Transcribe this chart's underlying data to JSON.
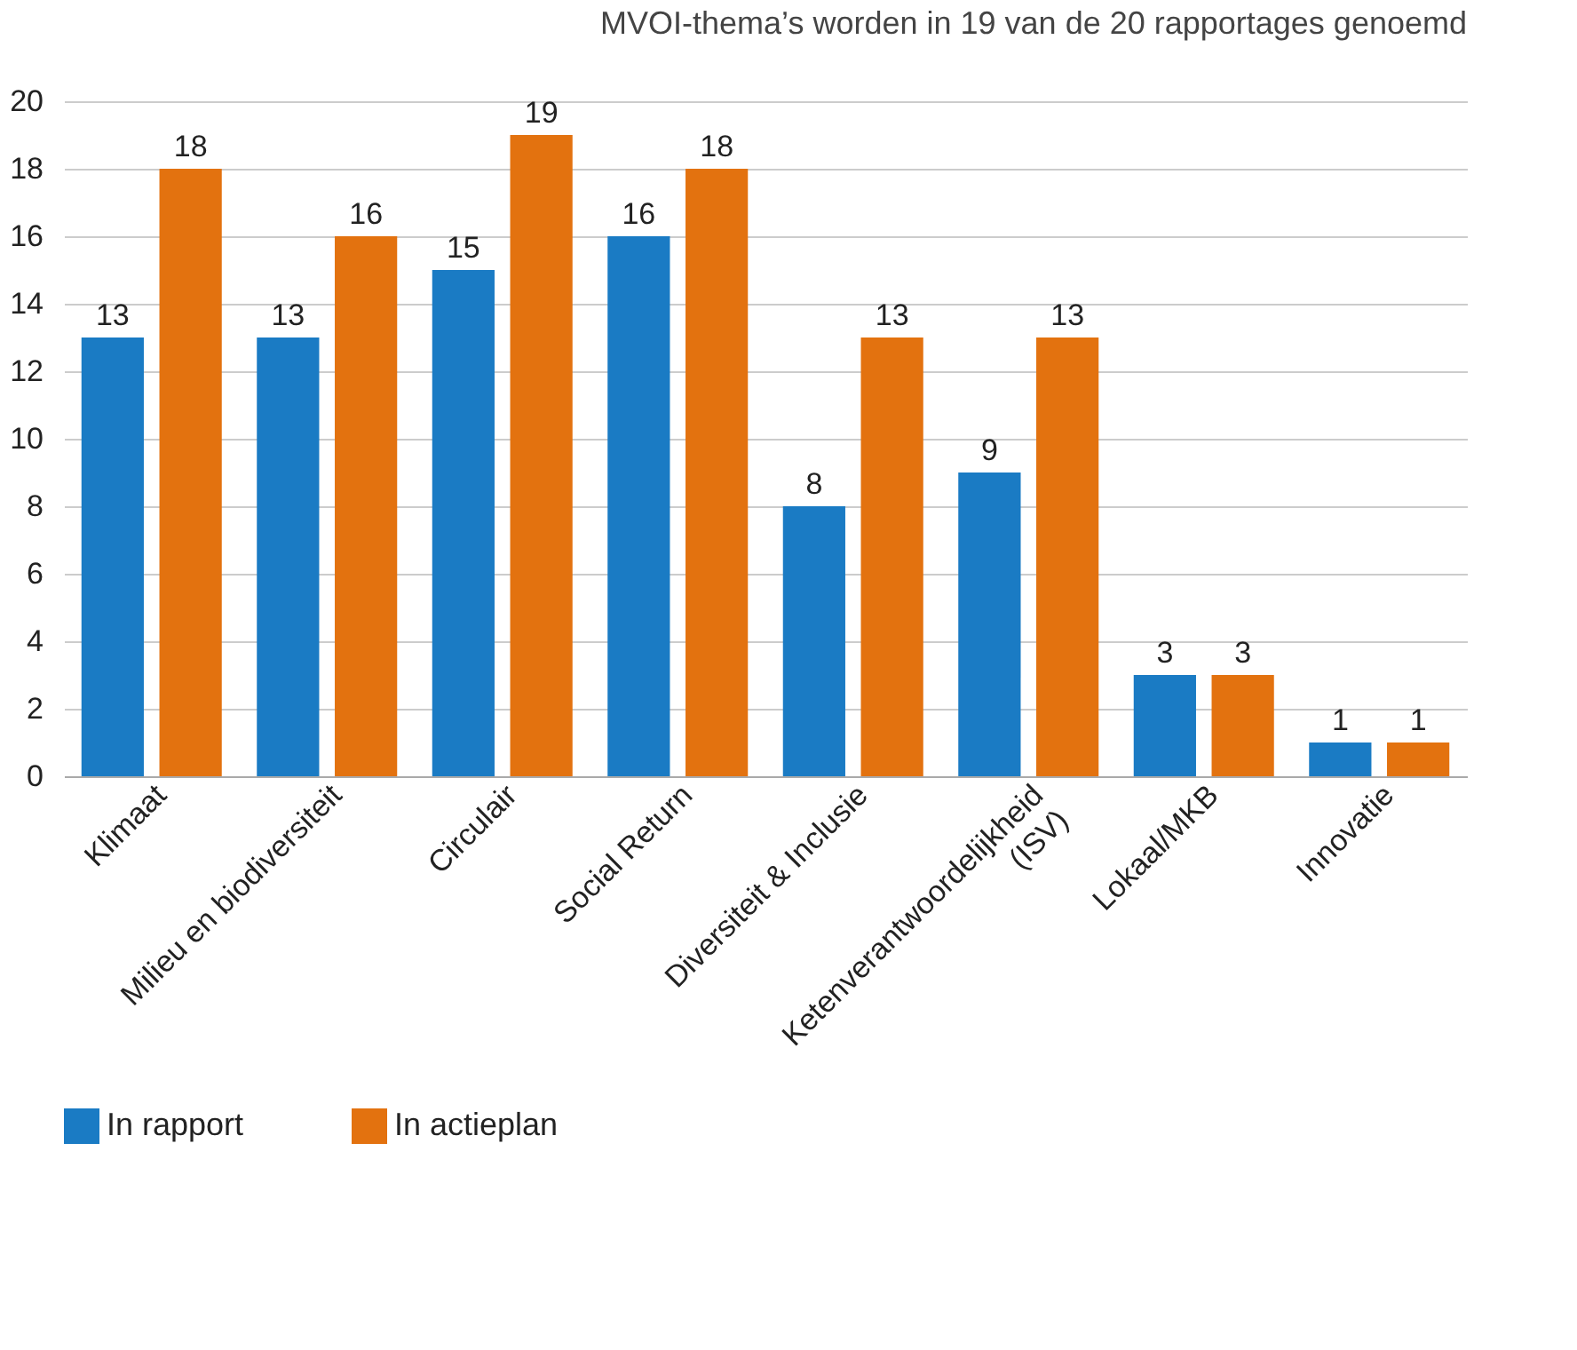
{
  "chart_data": {
    "type": "bar",
    "title": "MVOI-thema’s worden in 19 van de 20 rapportages genoemd",
    "categories": [
      "Klimaat",
      "Milieu en biodiversiteit",
      "Circulair",
      "Social Return",
      "Diversiteit & Inclusie",
      "Ketenverantwoordelijkheid\n(ISV)",
      "Lokaal/MKB",
      "Innovatie"
    ],
    "series": [
      {
        "name": "In rapport",
        "color": "#1a7bc4",
        "values": [
          13,
          13,
          15,
          16,
          8,
          9,
          3,
          1
        ]
      },
      {
        "name": "In actieplan",
        "color": "#e3720f",
        "values": [
          18,
          16,
          19,
          18,
          13,
          13,
          3,
          1
        ]
      }
    ],
    "ylim": [
      0,
      20
    ],
    "yticks": [
      0,
      2,
      4,
      6,
      8,
      10,
      12,
      14,
      16,
      18,
      20
    ],
    "grid": "y",
    "legend": "bottom",
    "data_labels": true
  }
}
